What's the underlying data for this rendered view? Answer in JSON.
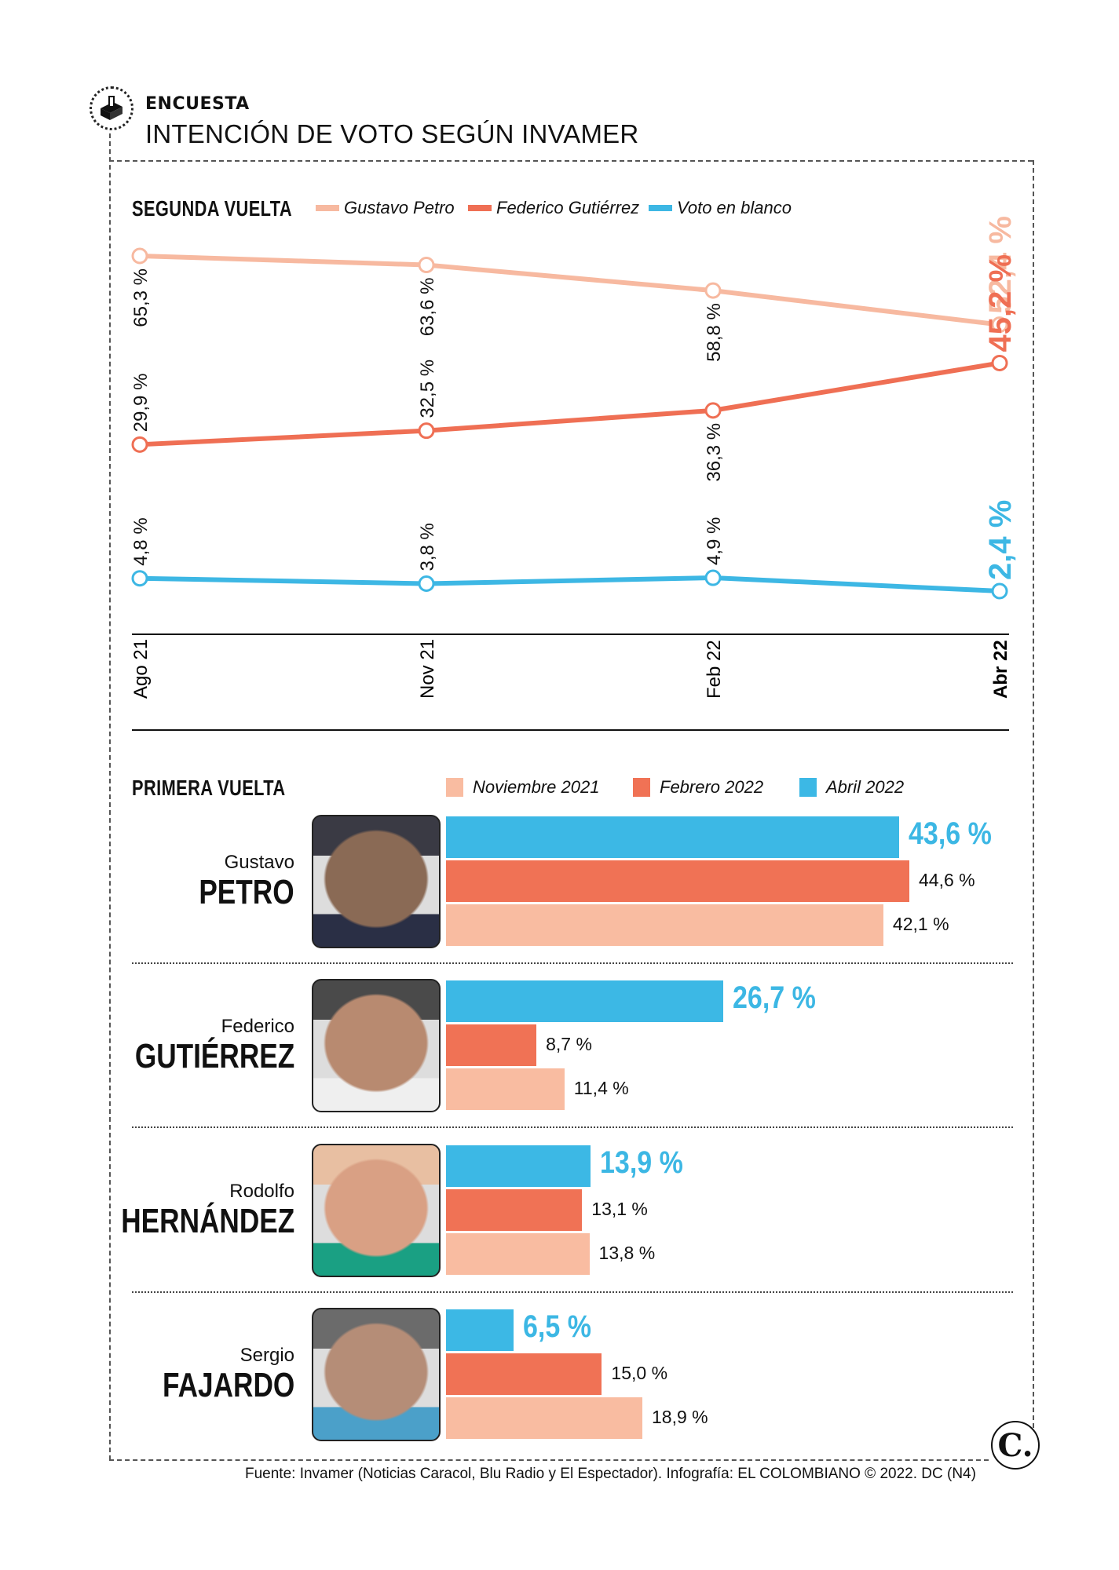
{
  "header": {
    "kicker": "ENCUESTA",
    "title": "INTENCIÓN DE VOTO SEGÚN INVAMER",
    "icon": "ballot-box-icon"
  },
  "colors": {
    "petro": "#f7b9a0",
    "gutierrez": "#ef6f54",
    "blanco": "#3db7e4",
    "nov2021": "#f9bca1",
    "feb2022": "#f07255",
    "abr2022": "#3cb8e5"
  },
  "chart_data": [
    {
      "type": "line",
      "title": "SEGUNDA VUELTA",
      "categories": [
        "Ago 21",
        "Nov 21",
        "Feb 22",
        "Abr 22"
      ],
      "ylim": [
        0,
        70
      ],
      "grid": false,
      "legend": "top",
      "series": [
        {
          "name": "Gustavo Petro",
          "key": "petro",
          "values": [
            65.3,
            63.6,
            58.8,
            52.4
          ],
          "labels": [
            "65,3 %",
            "63,6 %",
            "58,8 %",
            "52,4 %"
          ]
        },
        {
          "name": "Federico Gutiérrez",
          "key": "gutierrez",
          "values": [
            29.9,
            32.5,
            36.3,
            45.2
          ],
          "labels": [
            "29,9 %",
            "32,5 %",
            "36,3 %",
            "45,2 %"
          ]
        },
        {
          "name": "Voto en blanco",
          "key": "blanco",
          "values": [
            4.8,
            3.8,
            4.9,
            2.4
          ],
          "labels": [
            "4,8 %",
            "3,8 %",
            "4,9 %",
            "2,4 %"
          ]
        }
      ]
    },
    {
      "type": "bar",
      "orientation": "horizontal",
      "title": "PRIMERA VUELTA",
      "legend": "top",
      "series_names": [
        "Abril 2022",
        "Febrero 2022",
        "Noviembre 2021"
      ],
      "categories": [
        "Gustavo PETRO",
        "Federico GUTIÉRREZ",
        "Rodolfo HERNÁNDEZ",
        "Sergio FAJARDO"
      ],
      "series": [
        {
          "name": "Abril 2022",
          "key": "abr2022",
          "values": [
            43.6,
            26.7,
            13.9,
            6.5
          ],
          "labels": [
            "43,6 %",
            "26,7 %",
            "13,9 %",
            "6,5 %"
          ]
        },
        {
          "name": "Febrero 2022",
          "key": "feb2022",
          "values": [
            44.6,
            8.7,
            13.1,
            15.0
          ],
          "labels": [
            "44,6 %",
            "8,7 %",
            "13,1 %",
            "15,0 %"
          ]
        },
        {
          "name": "Noviembre 2021",
          "key": "nov2021",
          "values": [
            42.1,
            11.4,
            13.8,
            18.9
          ],
          "labels": [
            "42,1 %",
            "11,4 %",
            "13,8 %",
            "18,9 %"
          ]
        }
      ]
    }
  ],
  "segunda": {
    "title": "SEGUNDA VUELTA",
    "legend": [
      "Gustavo Petro",
      "Federico Gutiérrez",
      "Voto en blanco"
    ]
  },
  "primera": {
    "title": "PRIMERA VUELTA",
    "legend": [
      "Noviembre 2021",
      "Febrero 2022",
      "Abril 2022"
    ],
    "candidates": [
      {
        "first": "Gustavo",
        "last": "PETRO"
      },
      {
        "first": "Federico",
        "last": "GUTIÉRREZ"
      },
      {
        "first": "Rodolfo",
        "last": "HERNÁNDEZ"
      },
      {
        "first": "Sergio",
        "last": "FAJARDO"
      }
    ]
  },
  "footer": {
    "source": "Fuente: Invamer (Noticias Caracol, Blu Radio y El Espectador). Infografía: EL COLOMBIANO © 2022. DC (N4)",
    "logo": "C."
  }
}
